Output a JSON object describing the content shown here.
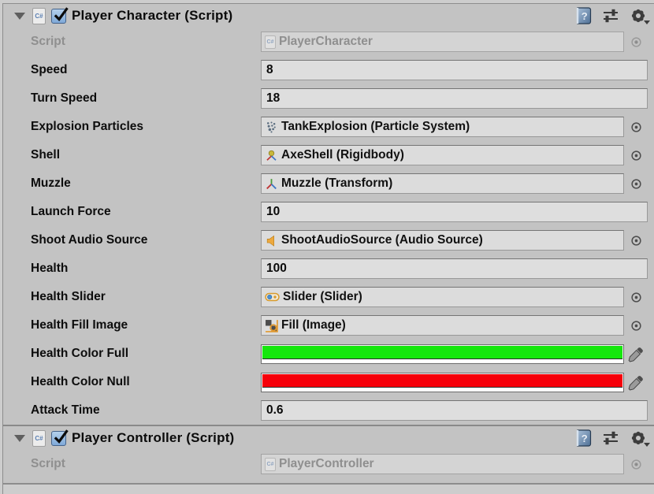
{
  "colors": {
    "panel_bg": "#c3c3c3",
    "field_bg": "#dedede",
    "field_border": "#989898",
    "label_text": "#0d0d0d",
    "disabled_text": "#8f8f8f",
    "checkbox_accent": "#7fa9d8",
    "health_color_full": "#15e70d",
    "health_color_null": "#f6000a"
  },
  "components": [
    {
      "title": "Player Character (Script)",
      "enabled": true,
      "header_icons": [
        "help-icon",
        "presets-icon",
        "gear-icon"
      ],
      "rows": [
        {
          "type": "object",
          "label": "Script",
          "value": "PlayerCharacter",
          "icon": "csharp-script-icon",
          "disabled": true
        },
        {
          "type": "text",
          "label": "Speed",
          "value": "8"
        },
        {
          "type": "text",
          "label": "Turn Speed",
          "value": "18"
        },
        {
          "type": "object",
          "label": "Explosion Particles",
          "value": "TankExplosion (Particle System)",
          "icon": "particle-system-icon"
        },
        {
          "type": "object",
          "label": "Shell",
          "value": "AxeShell (Rigidbody)",
          "icon": "rigidbody-icon"
        },
        {
          "type": "object",
          "label": "Muzzle",
          "value": "Muzzle (Transform)",
          "icon": "transform-icon"
        },
        {
          "type": "text",
          "label": "Launch Force",
          "value": "10"
        },
        {
          "type": "object",
          "label": "Shoot Audio Source",
          "value": "ShootAudioSource (Audio Source)",
          "icon": "audio-source-icon"
        },
        {
          "type": "text",
          "label": "Health",
          "value": "100"
        },
        {
          "type": "object",
          "label": "Health Slider",
          "value": "Slider (Slider)",
          "icon": "ui-slider-icon"
        },
        {
          "type": "object",
          "label": "Health Fill Image",
          "value": "Fill (Image)",
          "icon": "ui-image-icon"
        },
        {
          "type": "color",
          "label": "Health Color Full",
          "color": "#15e70d"
        },
        {
          "type": "color",
          "label": "Health Color Null",
          "color": "#f6000a"
        },
        {
          "type": "text",
          "label": "Attack Time",
          "value": "0.6"
        }
      ]
    },
    {
      "title": "Player Controller (Script)",
      "enabled": true,
      "header_icons": [
        "help-icon",
        "presets-icon",
        "gear-icon"
      ],
      "rows": [
        {
          "type": "object",
          "label": "Script",
          "value": "PlayerController",
          "icon": "csharp-script-icon",
          "disabled": true
        }
      ]
    }
  ]
}
